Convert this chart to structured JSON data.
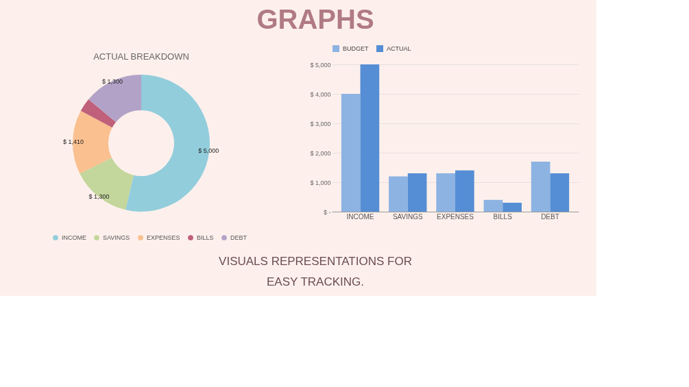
{
  "chart_data": [
    {
      "type": "donut",
      "title": "ACTUAL BREAKDOWN",
      "categories": [
        "INCOME",
        "SAVINGS",
        "EXPENSES",
        "BILLS",
        "DEBT"
      ],
      "values": [
        5000,
        1300,
        1410,
        300,
        1300
      ],
      "value_labels": [
        "$ 5,000",
        "$ 1,300",
        "$ 1,410",
        null,
        "$ 1,300"
      ],
      "colors": [
        "#92cddc",
        "#c3d69b",
        "#fac090",
        "#c0607a",
        "#b3a2c7"
      ],
      "legend": "bottom",
      "annotations": [
        "GRAPHS",
        "VISUALS REPRESENTATIONS FOR",
        "EASY TRACKING."
      ]
    },
    {
      "type": "bar",
      "categories": [
        "INCOME",
        "SAVINGS",
        "EXPENSES",
        "BILLS",
        "DEBT"
      ],
      "series": [
        {
          "name": "BUDGET",
          "color": "#8db3e2",
          "values": [
            4000,
            1200,
            1300,
            400,
            1700
          ]
        },
        {
          "name": "ACTUAL",
          "color": "#558ed5",
          "values": [
            5000,
            1300,
            1400,
            300,
            1300
          ]
        }
      ],
      "ylim": [
        0,
        5000
      ],
      "yticks": [
        {
          "value": 0,
          "label": "$ -"
        },
        {
          "value": 1000,
          "label": "$ 1,000"
        },
        {
          "value": 2000,
          "label": "$ 2,000"
        },
        {
          "value": 3000,
          "label": "$ 3,000"
        },
        {
          "value": 4000,
          "label": "$ 4,000"
        },
        {
          "value": 5000,
          "label": "$ 5,000"
        }
      ],
      "grid": "y",
      "legend": "top"
    }
  ]
}
